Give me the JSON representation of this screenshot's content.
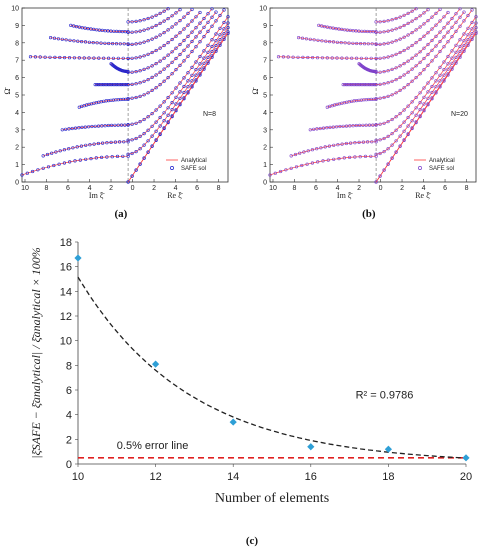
{
  "chart_data": [
    {
      "type": "scatter",
      "panel_label": "(a)",
      "annotation": "N=8",
      "xlabel_left": "Im ξ̄",
      "xlabel_right": "Re ξ̄",
      "ylabel": "Ω̄",
      "x_ticks": [
        "10",
        "8",
        "6",
        "4",
        "2",
        "0",
        "2",
        "4",
        "6",
        "8"
      ],
      "y_ticks": [
        "0",
        "1",
        "2",
        "3",
        "4",
        "5",
        "6",
        "7",
        "8",
        "9",
        "10"
      ],
      "ylim": [
        0,
        10
      ],
      "legend": [
        "Analytical",
        "SAFE sol"
      ],
      "colors": {
        "analytical": "#ff3b3b",
        "safe": "#2222cc"
      }
    },
    {
      "type": "scatter",
      "panel_label": "(b)",
      "annotation": "N=20",
      "xlabel_left": "Im ξ̄",
      "xlabel_right": "Re ξ̄",
      "ylabel": "Ω̄",
      "x_ticks": [
        "10",
        "8",
        "6",
        "4",
        "2",
        "0",
        "2",
        "4",
        "6",
        "8"
      ],
      "y_ticks": [
        "0",
        "1",
        "2",
        "3",
        "4",
        "5",
        "6",
        "7",
        "8",
        "9",
        "10"
      ],
      "ylim": [
        0,
        10
      ],
      "legend": [
        "Analytical",
        "SAFE sol"
      ],
      "colors": {
        "analytical": "#ff3b3b",
        "safe": "#7a3fcc"
      }
    },
    {
      "type": "scatter",
      "panel_label": "(c)",
      "x": [
        10,
        12,
        14,
        16,
        18,
        20
      ],
      "y": [
        16.7,
        8.1,
        3.4,
        1.4,
        1.2,
        0.5
      ],
      "xlim": [
        10,
        20
      ],
      "ylim": [
        0,
        18
      ],
      "x_ticks": [
        "10",
        "12",
        "14",
        "16",
        "18",
        "20"
      ],
      "y_ticks": [
        "0",
        "2",
        "4",
        "6",
        "8",
        "10",
        "12",
        "14",
        "16",
        "18"
      ],
      "xlabel": "Number of elements",
      "ylabel": "|ξ̄SAFE − ξ̄analytical| / ξ̄analytical × 100%",
      "r_squared_label": "R² = 0.9786",
      "error_line_label": "0.5% error line",
      "error_line_value": 0.5,
      "trendline": "exponential",
      "colors": {
        "points": "#2e9fd6",
        "trend": "#222222",
        "error_line": "#e02020"
      }
    }
  ]
}
